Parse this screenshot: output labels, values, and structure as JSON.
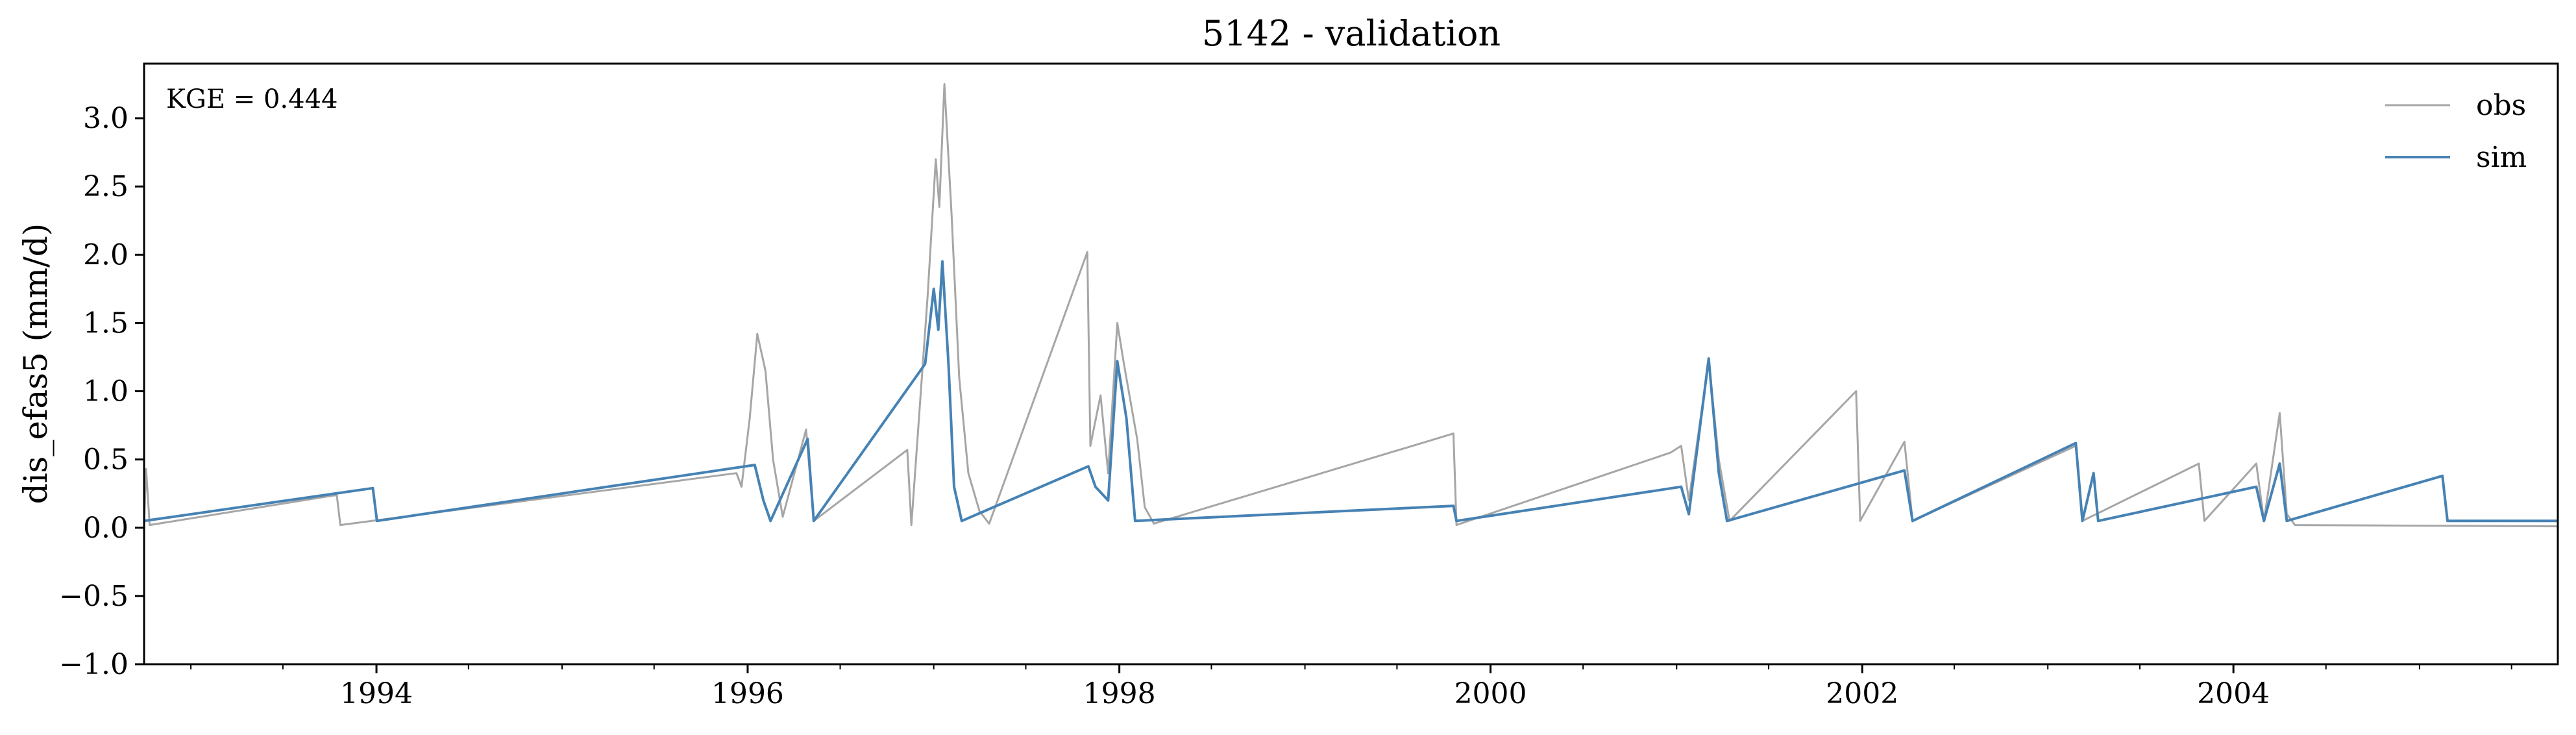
{
  "chart_data": {
    "type": "line",
    "title": "5142 - validation",
    "xlabel": "",
    "ylabel": "dis_efas5 (mm/d)",
    "annotation": "KGE = 0.444",
    "x_range": [
      "1992-10-01",
      "2005-09-30"
    ],
    "ylim": [
      -1.0,
      3.4
    ],
    "yticks": [
      -1.0,
      -0.5,
      0.0,
      0.5,
      1.0,
      1.5,
      2.0,
      2.5,
      3.0
    ],
    "ytick_labels": [
      "−1.0",
      "−0.5",
      "0.0",
      "0.5",
      "1.0",
      "1.5",
      "2.0",
      "2.5",
      "3.0"
    ],
    "xticks": [
      "1994-01-01",
      "1996-01-01",
      "1998-01-01",
      "2000-01-01",
      "2002-01-01",
      "2004-01-01"
    ],
    "xtick_labels": [
      "1994",
      "1996",
      "1998",
      "2000",
      "2002",
      "2004"
    ],
    "grid": false,
    "legend_position": "top-right",
    "series": [
      {
        "name": "obs",
        "color": "#a6a6a6",
        "baseline": 0.01,
        "points": [
          [
            "1992-10-05",
            0.43
          ],
          [
            "1992-10-12",
            0.02
          ],
          [
            "1993-10-15",
            0.24
          ],
          [
            "1993-10-22",
            0.02
          ],
          [
            "1995-12-10",
            0.4
          ],
          [
            "1995-12-20",
            0.3
          ],
          [
            "1996-01-05",
            0.8
          ],
          [
            "1996-01-20",
            1.42
          ],
          [
            "1996-02-05",
            1.15
          ],
          [
            "1996-02-20",
            0.5
          ],
          [
            "1996-03-10",
            0.08
          ],
          [
            "1996-04-25",
            0.72
          ],
          [
            "1996-05-10",
            0.05
          ],
          [
            "1996-11-10",
            0.57
          ],
          [
            "1996-11-18",
            0.02
          ],
          [
            "1996-12-20",
            1.7
          ],
          [
            "1997-01-05",
            2.7
          ],
          [
            "1997-01-12",
            2.35
          ],
          [
            "1997-01-22",
            3.25
          ],
          [
            "1997-02-05",
            2.3
          ],
          [
            "1997-02-20",
            1.1
          ],
          [
            "1997-03-10",
            0.4
          ],
          [
            "1997-04-01",
            0.12
          ],
          [
            "1997-04-20",
            0.03
          ],
          [
            "1997-10-30",
            2.02
          ],
          [
            "1997-11-05",
            0.6
          ],
          [
            "1997-11-25",
            0.97
          ],
          [
            "1997-12-10",
            0.4
          ],
          [
            "1997-12-28",
            1.5
          ],
          [
            "1998-01-10",
            1.2
          ],
          [
            "1998-02-05",
            0.65
          ],
          [
            "1998-02-20",
            0.15
          ],
          [
            "1998-03-10",
            0.03
          ],
          [
            "1999-10-20",
            0.69
          ],
          [
            "1999-10-26",
            0.02
          ],
          [
            "2000-12-20",
            0.55
          ],
          [
            "2001-01-10",
            0.6
          ],
          [
            "2001-01-25",
            0.2
          ],
          [
            "2001-03-05",
            1.22
          ],
          [
            "2001-03-25",
            0.5
          ],
          [
            "2001-04-15",
            0.05
          ],
          [
            "2001-12-20",
            1.0
          ],
          [
            "2001-12-28",
            0.05
          ],
          [
            "2002-03-25",
            0.63
          ],
          [
            "2002-04-10",
            0.05
          ],
          [
            "2003-02-25",
            0.6
          ],
          [
            "2003-03-10",
            0.05
          ],
          [
            "2003-10-25",
            0.47
          ],
          [
            "2003-11-05",
            0.05
          ],
          [
            "2004-02-15",
            0.47
          ],
          [
            "2004-03-01",
            0.05
          ],
          [
            "2004-04-01",
            0.84
          ],
          [
            "2004-04-15",
            0.1
          ],
          [
            "2004-05-01",
            0.02
          ]
        ]
      },
      {
        "name": "sim",
        "color": "#4682b4",
        "baseline": 0.05,
        "points": [
          [
            "1993-12-25",
            0.29
          ],
          [
            "1994-01-02",
            0.05
          ],
          [
            "1996-01-15",
            0.46
          ],
          [
            "1996-02-01",
            0.2
          ],
          [
            "1996-02-15",
            0.05
          ],
          [
            "1996-04-28",
            0.65
          ],
          [
            "1996-05-10",
            0.05
          ],
          [
            "1996-12-15",
            1.2
          ],
          [
            "1997-01-01",
            1.75
          ],
          [
            "1997-01-10",
            1.45
          ],
          [
            "1997-01-18",
            1.95
          ],
          [
            "1997-01-30",
            1.2
          ],
          [
            "1997-02-10",
            0.3
          ],
          [
            "1997-02-25",
            0.05
          ],
          [
            "1997-11-01",
            0.45
          ],
          [
            "1997-11-15",
            0.3
          ],
          [
            "1997-12-10",
            0.2
          ],
          [
            "1997-12-28",
            1.22
          ],
          [
            "1998-01-15",
            0.8
          ],
          [
            "1998-02-01",
            0.05
          ],
          [
            "1999-10-20",
            0.16
          ],
          [
            "1999-10-26",
            0.05
          ],
          [
            "2001-01-10",
            0.3
          ],
          [
            "2001-01-25",
            0.1
          ],
          [
            "2001-03-05",
            1.24
          ],
          [
            "2001-03-25",
            0.4
          ],
          [
            "2001-04-10",
            0.05
          ],
          [
            "2002-03-25",
            0.42
          ],
          [
            "2002-04-10",
            0.05
          ],
          [
            "2003-02-25",
            0.62
          ],
          [
            "2003-03-10",
            0.05
          ],
          [
            "2003-04-01",
            0.4
          ],
          [
            "2003-04-10",
            0.05
          ],
          [
            "2004-02-15",
            0.3
          ],
          [
            "2004-03-01",
            0.05
          ],
          [
            "2004-04-01",
            0.47
          ],
          [
            "2004-04-15",
            0.05
          ],
          [
            "2005-02-15",
            0.38
          ],
          [
            "2005-02-25",
            0.05
          ]
        ]
      }
    ]
  }
}
